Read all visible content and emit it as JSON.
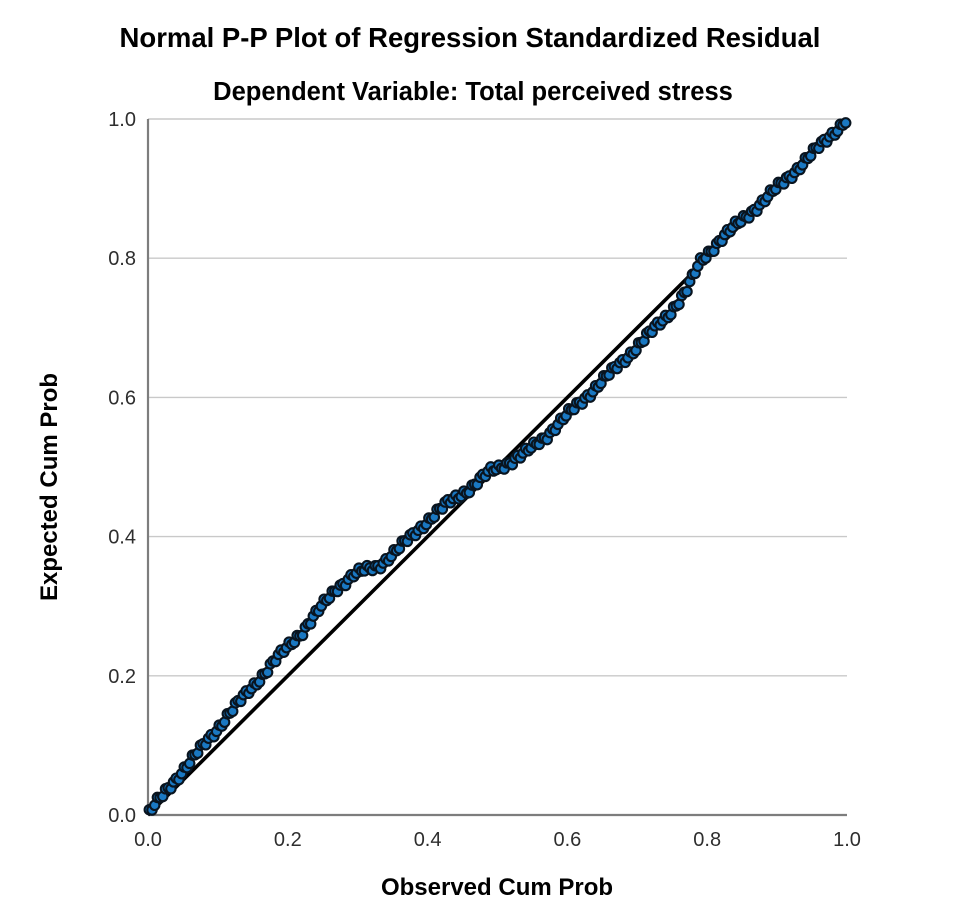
{
  "title": "Normal P-P Plot of Regression Standardized Residual",
  "subtitle": "Dependent Variable: Total perceived stress",
  "chart_data": {
    "type": "scatter",
    "variant": "normal-pp-plot",
    "title": "Normal P-P Plot of Regression Standardized Residual",
    "subtitle": "Dependent Variable: Total perceived stress",
    "xlabel": "Observed Cum Prob",
    "ylabel": "Expected Cum Prob",
    "xlim": [
      0.0,
      1.0
    ],
    "ylim": [
      0.0,
      1.0
    ],
    "grid": "horizontal-only",
    "legend": "none",
    "x_ticks": [
      {
        "label": "0.0",
        "value": 0.0
      },
      {
        "label": "0.2",
        "value": 0.2
      },
      {
        "label": "0.4",
        "value": 0.4
      },
      {
        "label": "0.6",
        "value": 0.6
      },
      {
        "label": "0.8",
        "value": 0.8
      },
      {
        "label": "1.0",
        "value": 1.0
      }
    ],
    "y_ticks": [
      {
        "label": "0.0",
        "value": 0.0
      },
      {
        "label": "0.2",
        "value": 0.2
      },
      {
        "label": "0.4",
        "value": 0.4
      },
      {
        "label": "0.6",
        "value": 0.6
      },
      {
        "label": "0.8",
        "value": 0.8
      },
      {
        "label": "1.0",
        "value": 1.0
      }
    ],
    "reference_line": {
      "from": [
        0.0,
        0.0
      ],
      "to": [
        1.0,
        1.0
      ]
    },
    "series": [
      {
        "name": "standardized-residual-cumulative-probabilities",
        "n_points": 260,
        "curve_anchors": [
          [
            0.0,
            0.0
          ],
          [
            0.01,
            0.014
          ],
          [
            0.03,
            0.04
          ],
          [
            0.06,
            0.076
          ],
          [
            0.09,
            0.113
          ],
          [
            0.12,
            0.15
          ],
          [
            0.15,
            0.185
          ],
          [
            0.18,
            0.22
          ],
          [
            0.22,
            0.263
          ],
          [
            0.25,
            0.301
          ],
          [
            0.27,
            0.326
          ],
          [
            0.295,
            0.346
          ],
          [
            0.33,
            0.358
          ],
          [
            0.36,
            0.384
          ],
          [
            0.4,
            0.423
          ],
          [
            0.43,
            0.449
          ],
          [
            0.46,
            0.469
          ],
          [
            0.49,
            0.494
          ],
          [
            0.51,
            0.503
          ],
          [
            0.54,
            0.52
          ],
          [
            0.57,
            0.545
          ],
          [
            0.6,
            0.575
          ],
          [
            0.64,
            0.614
          ],
          [
            0.68,
            0.653
          ],
          [
            0.72,
            0.694
          ],
          [
            0.745,
            0.72
          ],
          [
            0.77,
            0.752
          ],
          [
            0.79,
            0.795
          ],
          [
            0.82,
            0.828
          ],
          [
            0.85,
            0.855
          ],
          [
            0.88,
            0.882
          ],
          [
            0.92,
            0.92
          ],
          [
            0.96,
            0.96
          ],
          [
            1.0,
            1.0
          ]
        ],
        "scatter_jitter": {
          "amp1": 0.0042,
          "freq1": 1.93,
          "amp2": 0.0026,
          "freq2": 0.41
        }
      }
    ],
    "colors": {
      "background": "#ffffff",
      "grid": "#c9c9c9",
      "axis": "#7d7d7d",
      "reference_line": "#000000",
      "marker_fill": "#1a78c2",
      "marker_edge": "#09141f",
      "tick_text": "#2e2e2e",
      "title_text": "#000000"
    }
  }
}
